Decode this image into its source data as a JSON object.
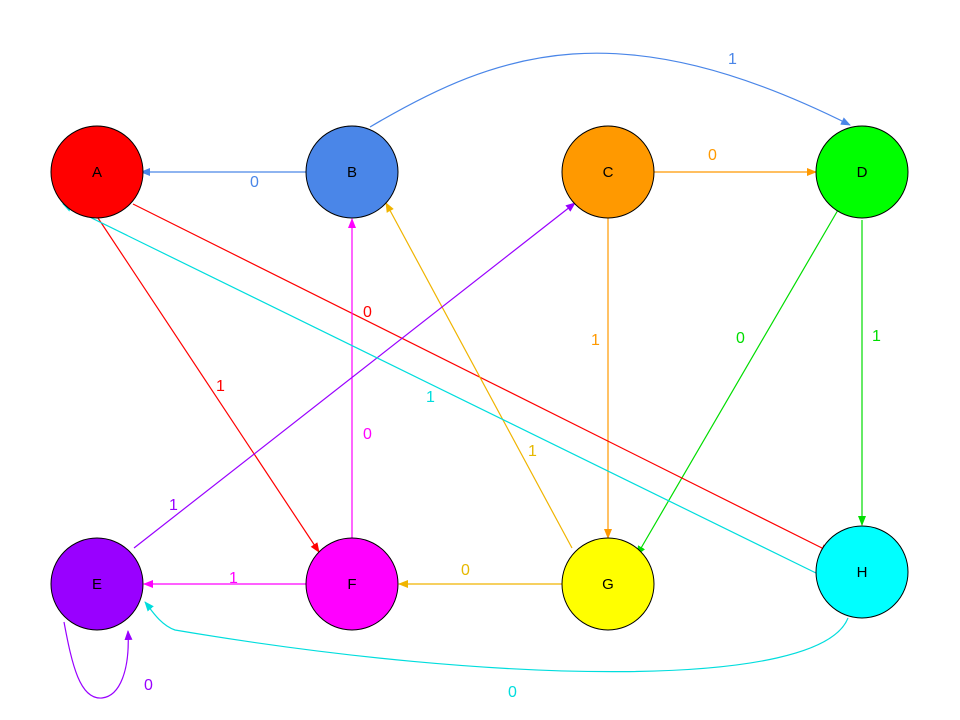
{
  "nodes": [
    {
      "id": "A",
      "label": "A",
      "color": "#ff0000"
    },
    {
      "id": "B",
      "label": "B",
      "color": "#4a86e8"
    },
    {
      "id": "C",
      "label": "C",
      "color": "#ff9900"
    },
    {
      "id": "D",
      "label": "D",
      "color": "#00ff00"
    },
    {
      "id": "E",
      "label": "E",
      "color": "#9900ff"
    },
    {
      "id": "F",
      "label": "F",
      "color": "#ff00ff"
    },
    {
      "id": "G",
      "label": "G",
      "color": "#ffff00"
    },
    {
      "id": "H",
      "label": "H",
      "color": "#00ffff"
    }
  ],
  "edges": [
    {
      "from": "B",
      "to": "A",
      "label": "0",
      "color": "#4a86e8"
    },
    {
      "from": "B",
      "to": "D",
      "label": "1",
      "color": "#4a86e8"
    },
    {
      "from": "C",
      "to": "D",
      "label": "0",
      "color": "#ff9900"
    },
    {
      "from": "C",
      "to": "G",
      "label": "1",
      "color": "#ff9900"
    },
    {
      "from": "D",
      "to": "G",
      "label": "0",
      "color": "#00ff00"
    },
    {
      "from": "D",
      "to": "H",
      "label": "1",
      "color": "#00ff00"
    },
    {
      "from": "A",
      "to": "H",
      "label": "0",
      "color": "#ff0000"
    },
    {
      "from": "A",
      "to": "F",
      "label": "1",
      "color": "#ff0000"
    },
    {
      "from": "F",
      "to": "B",
      "label": "0",
      "color": "#ff00ff"
    },
    {
      "from": "F",
      "to": "E",
      "label": "1",
      "color": "#ff00ff"
    },
    {
      "from": "G",
      "to": "F",
      "label": "0",
      "color": "#ffcc00"
    },
    {
      "from": "G",
      "to": "B",
      "label": "1",
      "color": "#ffcc00"
    },
    {
      "from": "E",
      "to": "C",
      "label": "1",
      "color": "#9900ff"
    },
    {
      "from": "E",
      "to": "E",
      "label": "0",
      "color": "#9900ff"
    },
    {
      "from": "H",
      "to": "A",
      "label": "1",
      "color": "#00ffff"
    },
    {
      "from": "H",
      "to": "E",
      "label": "0",
      "color": "#00ffff"
    }
  ]
}
